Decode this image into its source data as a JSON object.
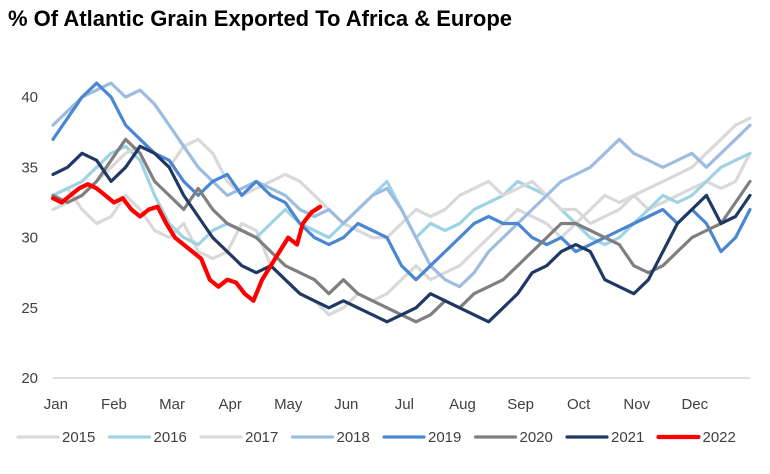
{
  "chart_data": {
    "type": "line",
    "title": "% Of Atlantic Grain Exported To Africa & Europe",
    "xlabel": "",
    "ylabel": "",
    "x_tick_labels": [
      "Jan",
      "Feb",
      "Mar",
      "Apr",
      "May",
      "Jun",
      "Jul",
      "Aug",
      "Sep",
      "Oct",
      "Nov",
      "Dec"
    ],
    "y_tick_labels": [
      "20",
      "25",
      "30",
      "35",
      "40"
    ],
    "ylim": [
      20,
      43
    ],
    "xlim": [
      0,
      12
    ],
    "grid": false,
    "legend_position": "bottom",
    "series": [
      {
        "name": "2015",
        "color": "#d9d9d9",
        "width": 3.2,
        "x": [
          0,
          0.25,
          0.5,
          0.75,
          1,
          1.25,
          1.5,
          1.75,
          2,
          2.25,
          2.5,
          2.75,
          3,
          3.25,
          3.5,
          3.75,
          4,
          4.25,
          4.5,
          4.75,
          5,
          5.25,
          5.5,
          5.75,
          6,
          6.25,
          6.5,
          6.75,
          7,
          7.25,
          7.5,
          7.75,
          8,
          8.25,
          8.5,
          8.75,
          9,
          9.25,
          9.5,
          9.75,
          10,
          10.25,
          10.5,
          10.75,
          11,
          11.25,
          11.5,
          11.75,
          12
        ],
        "y": [
          33,
          33.5,
          32,
          31,
          31.5,
          33,
          32,
          30.5,
          30,
          31,
          29,
          28.5,
          29,
          31,
          30.5,
          28,
          27,
          26,
          25.5,
          24.5,
          25,
          26,
          25.5,
          26,
          27,
          28,
          27,
          27.5,
          28,
          29,
          30,
          31,
          32,
          31.5,
          31,
          30,
          31,
          32,
          33,
          32.5,
          33,
          32,
          32.5,
          33,
          33.5,
          34,
          33.5,
          34,
          36
        ]
      },
      {
        "name": "2016",
        "color": "#9ed3e6",
        "width": 3.2,
        "x": [
          0,
          0.25,
          0.5,
          0.75,
          1,
          1.25,
          1.5,
          1.75,
          2,
          2.25,
          2.5,
          2.75,
          3,
          3.25,
          3.5,
          3.75,
          4,
          4.25,
          4.5,
          4.75,
          5,
          5.25,
          5.5,
          5.75,
          6,
          6.25,
          6.5,
          6.75,
          7,
          7.25,
          7.5,
          7.75,
          8,
          8.25,
          8.5,
          8.75,
          9,
          9.25,
          9.5,
          9.75,
          10,
          10.25,
          10.5,
          10.75,
          11,
          11.25,
          11.5,
          11.75,
          12
        ],
        "y": [
          33,
          33.5,
          34,
          35,
          36,
          36.5,
          35.5,
          33,
          31,
          30,
          29.5,
          30.5,
          31,
          30.5,
          30,
          31,
          32,
          31,
          30.5,
          30,
          31,
          32,
          33,
          34,
          32,
          30,
          31,
          30.5,
          31,
          32,
          32.5,
          33,
          34,
          33.5,
          33,
          32,
          31,
          30,
          29.5,
          30,
          31,
          32,
          33,
          32.5,
          33,
          34,
          35,
          35.5,
          36
        ]
      },
      {
        "name": "2017",
        "color": "#d9d9d9",
        "width": 3.2,
        "x": [
          0,
          0.25,
          0.5,
          0.75,
          1,
          1.25,
          1.5,
          1.75,
          2,
          2.25,
          2.5,
          2.75,
          3,
          3.25,
          3.5,
          3.75,
          4,
          4.25,
          4.5,
          4.75,
          5,
          5.25,
          5.5,
          5.75,
          6,
          6.25,
          6.5,
          6.75,
          7,
          7.25,
          7.5,
          7.75,
          8,
          8.25,
          8.5,
          8.75,
          9,
          9.25,
          9.5,
          9.75,
          10,
          10.25,
          10.5,
          10.75,
          11,
          11.25,
          11.5,
          11.75,
          12
        ],
        "y": [
          32,
          32.5,
          33,
          34,
          35,
          36,
          36.5,
          36,
          35,
          36.5,
          37,
          36,
          34,
          33,
          33.5,
          34,
          34.5,
          34,
          33,
          32,
          31,
          30.5,
          30,
          30,
          31,
          32,
          31.5,
          32,
          33,
          33.5,
          34,
          33,
          33.5,
          34,
          33,
          32,
          32,
          31,
          31.5,
          32,
          33,
          33.5,
          34,
          34.5,
          35,
          36,
          37,
          38,
          38.5
        ]
      },
      {
        "name": "2018",
        "color": "#9dbde0",
        "width": 3.2,
        "x": [
          0,
          0.25,
          0.5,
          0.75,
          1,
          1.25,
          1.5,
          1.75,
          2,
          2.25,
          2.5,
          2.75,
          3,
          3.25,
          3.5,
          3.75,
          4,
          4.25,
          4.5,
          4.75,
          5,
          5.25,
          5.5,
          5.75,
          6,
          6.25,
          6.5,
          6.75,
          7,
          7.25,
          7.5,
          7.75,
          8,
          8.25,
          8.5,
          8.75,
          9,
          9.25,
          9.5,
          9.75,
          10,
          10.25,
          10.5,
          10.75,
          11,
          11.25,
          11.5,
          11.75,
          12
        ],
        "y": [
          38,
          39,
          40,
          40.5,
          41,
          40,
          40.5,
          39.5,
          38,
          36.5,
          35,
          34,
          33,
          33.5,
          34,
          33.5,
          33,
          32,
          31.5,
          32,
          31,
          32,
          33,
          33.5,
          32,
          30,
          28,
          27,
          26.5,
          27.5,
          29,
          30,
          31,
          32,
          33,
          34,
          34.5,
          35,
          36,
          37,
          36,
          35.5,
          35,
          35.5,
          36,
          35,
          36,
          37,
          38
        ]
      },
      {
        "name": "2019",
        "color": "#4a86d4",
        "width": 3.2,
        "x": [
          0,
          0.25,
          0.5,
          0.75,
          1,
          1.25,
          1.5,
          1.75,
          2,
          2.25,
          2.5,
          2.75,
          3,
          3.25,
          3.5,
          3.75,
          4,
          4.25,
          4.5,
          4.75,
          5,
          5.25,
          5.5,
          5.75,
          6,
          6.25,
          6.5,
          6.75,
          7,
          7.25,
          7.5,
          7.75,
          8,
          8.25,
          8.5,
          8.75,
          9,
          9.25,
          9.5,
          9.75,
          10,
          10.25,
          10.5,
          10.75,
          11,
          11.25,
          11.5,
          11.75,
          12
        ],
        "y": [
          37,
          38.5,
          40,
          41,
          40,
          38,
          37,
          36,
          35.5,
          34,
          33,
          34,
          34.5,
          33,
          34,
          33,
          32.5,
          31,
          30,
          29.5,
          30,
          31,
          30.5,
          30,
          28,
          27,
          28,
          29,
          30,
          31,
          31.5,
          31,
          31,
          30,
          29.5,
          30,
          29,
          29.5,
          30,
          30.5,
          31,
          31.5,
          32,
          31,
          32,
          31,
          29,
          30,
          32
        ]
      },
      {
        "name": "2020",
        "color": "#7f7f7f",
        "width": 3.2,
        "x": [
          0,
          0.25,
          0.5,
          0.75,
          1,
          1.25,
          1.5,
          1.75,
          2,
          2.25,
          2.5,
          2.75,
          3,
          3.25,
          3.5,
          3.75,
          4,
          4.25,
          4.5,
          4.75,
          5,
          5.25,
          5.5,
          5.75,
          6,
          6.25,
          6.5,
          6.75,
          7,
          7.25,
          7.5,
          7.75,
          8,
          8.25,
          8.5,
          8.75,
          9,
          9.25,
          9.5,
          9.75,
          10,
          10.25,
          10.5,
          10.75,
          11,
          11.25,
          11.5,
          11.75,
          12
        ],
        "y": [
          33,
          32.5,
          33,
          34,
          35.5,
          37,
          36,
          34,
          33,
          32,
          33.5,
          32,
          31,
          30.5,
          30,
          29,
          28,
          27.5,
          27,
          26,
          27,
          26,
          25.5,
          25,
          24.5,
          24,
          24.5,
          25.5,
          25,
          26,
          26.5,
          27,
          28,
          29,
          30,
          31,
          31,
          30.5,
          30,
          29.5,
          28,
          27.5,
          28,
          29,
          30,
          30.5,
          31,
          32.5,
          34
        ]
      },
      {
        "name": "2021",
        "color": "#1f3864",
        "width": 3.2,
        "x": [
          0,
          0.25,
          0.5,
          0.75,
          1,
          1.25,
          1.5,
          1.75,
          2,
          2.25,
          2.5,
          2.75,
          3,
          3.25,
          3.5,
          3.75,
          4,
          4.25,
          4.5,
          4.75,
          5,
          5.25,
          5.5,
          5.75,
          6,
          6.25,
          6.5,
          6.75,
          7,
          7.25,
          7.5,
          7.75,
          8,
          8.25,
          8.5,
          8.75,
          9,
          9.25,
          9.5,
          9.75,
          10,
          10.25,
          10.5,
          10.75,
          11,
          11.25,
          11.5,
          11.75,
          12
        ],
        "y": [
          34.5,
          35,
          36,
          35.5,
          34,
          35,
          36.5,
          36,
          35,
          33,
          31.5,
          30,
          29,
          28,
          27.5,
          28,
          27,
          26,
          25.5,
          25,
          25.5,
          25,
          24.5,
          24,
          24.5,
          25,
          26,
          25.5,
          25,
          24.5,
          24,
          25,
          26,
          27.5,
          28,
          29,
          29.5,
          29,
          27,
          26.5,
          26,
          27,
          29,
          31,
          32,
          33,
          31,
          31.5,
          33
        ]
      },
      {
        "name": "2022",
        "color": "#ff0000",
        "width": 4.2,
        "x": [
          0,
          0.15,
          0.3,
          0.45,
          0.6,
          0.75,
          0.9,
          1.05,
          1.2,
          1.35,
          1.5,
          1.65,
          1.8,
          1.95,
          2.1,
          2.25,
          2.4,
          2.55,
          2.7,
          2.85,
          3,
          3.15,
          3.3,
          3.45,
          3.6,
          3.75,
          3.9,
          4.05,
          4.2,
          4.3,
          4.45,
          4.6
        ],
        "y": [
          32.8,
          32.5,
          33,
          33.5,
          33.8,
          33.5,
          33,
          32.5,
          32.8,
          32,
          31.5,
          32,
          32.2,
          31,
          30,
          29.5,
          29,
          28.5,
          27,
          26.5,
          27,
          26.8,
          26,
          25.5,
          27,
          28,
          29,
          30,
          29.5,
          31,
          31.8,
          32.2
        ]
      }
    ]
  }
}
